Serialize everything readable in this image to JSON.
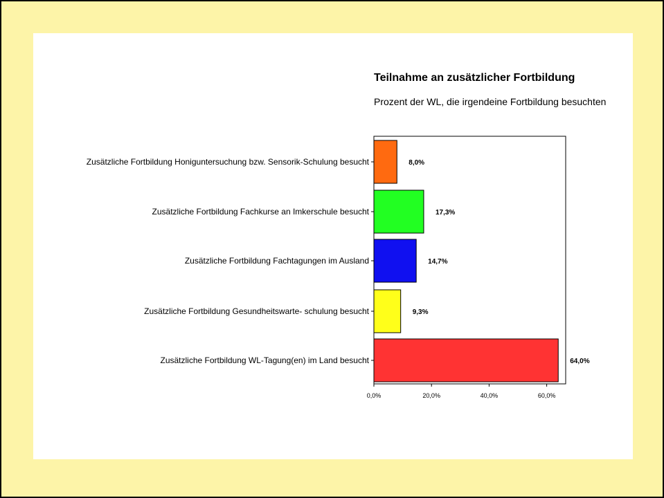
{
  "chart_data": {
    "type": "bar",
    "orientation": "horizontal",
    "title": "Teilnahme an zusätzlicher Fortbildung",
    "subtitle": "Prozent der WL, die irgendeine Fortbildung besuchten",
    "categories": [
      "Zusätzliche Fortbildung Honiguntersuchung bzw. Sensorik-Schulung besucht",
      "Zusätzliche Fortbildung Fachkurse an Imkerschule besucht",
      "Zusätzliche Fortbildung Fachtagungen im  Ausland",
      "Zusätzliche Fortbildung Gesundheitswarte-  schulung besucht",
      "Zusätzliche Fortbildung WL-Tagung(en) im Land besucht"
    ],
    "values": [
      8.0,
      17.3,
      14.7,
      9.3,
      64.0
    ],
    "value_labels": [
      "8,0%",
      "17,3%",
      "14,7%",
      "9,3%",
      "64,0%"
    ],
    "colors": [
      "#ff6a10",
      "#22ff22",
      "#1010f0",
      "#ffff1a",
      "#ff3333"
    ],
    "xlim": [
      0,
      67
    ],
    "xticks": [
      0,
      20,
      40,
      60
    ],
    "xtick_labels": [
      "0,0%",
      "20,0%",
      "40,0%",
      "60,0%"
    ],
    "grid": false,
    "legend": "none"
  }
}
